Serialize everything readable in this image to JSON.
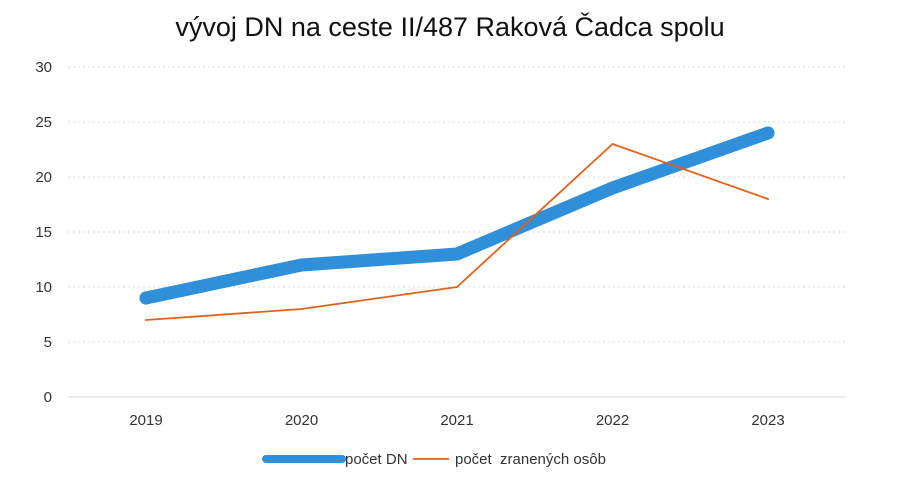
{
  "chart_data": {
    "type": "line",
    "title": "vývoj DN na ceste II/487 Raková Čadca spolu",
    "categories": [
      "2019",
      "2020",
      "2021",
      "2022",
      "2023"
    ],
    "ylim": [
      0,
      30
    ],
    "yticks": [
      0,
      5,
      10,
      15,
      20,
      25,
      30
    ],
    "grid": true,
    "legend_position": "bottom",
    "series": [
      {
        "name": "počet DN",
        "values": [
          9,
          12,
          13,
          19,
          24
        ],
        "color": "#2f8fd8",
        "style": "thick"
      },
      {
        "name": "počet  zranených osôb",
        "values": [
          7,
          8,
          10,
          23,
          18
        ],
        "color": "#e2611a",
        "style": "thin"
      }
    ]
  }
}
